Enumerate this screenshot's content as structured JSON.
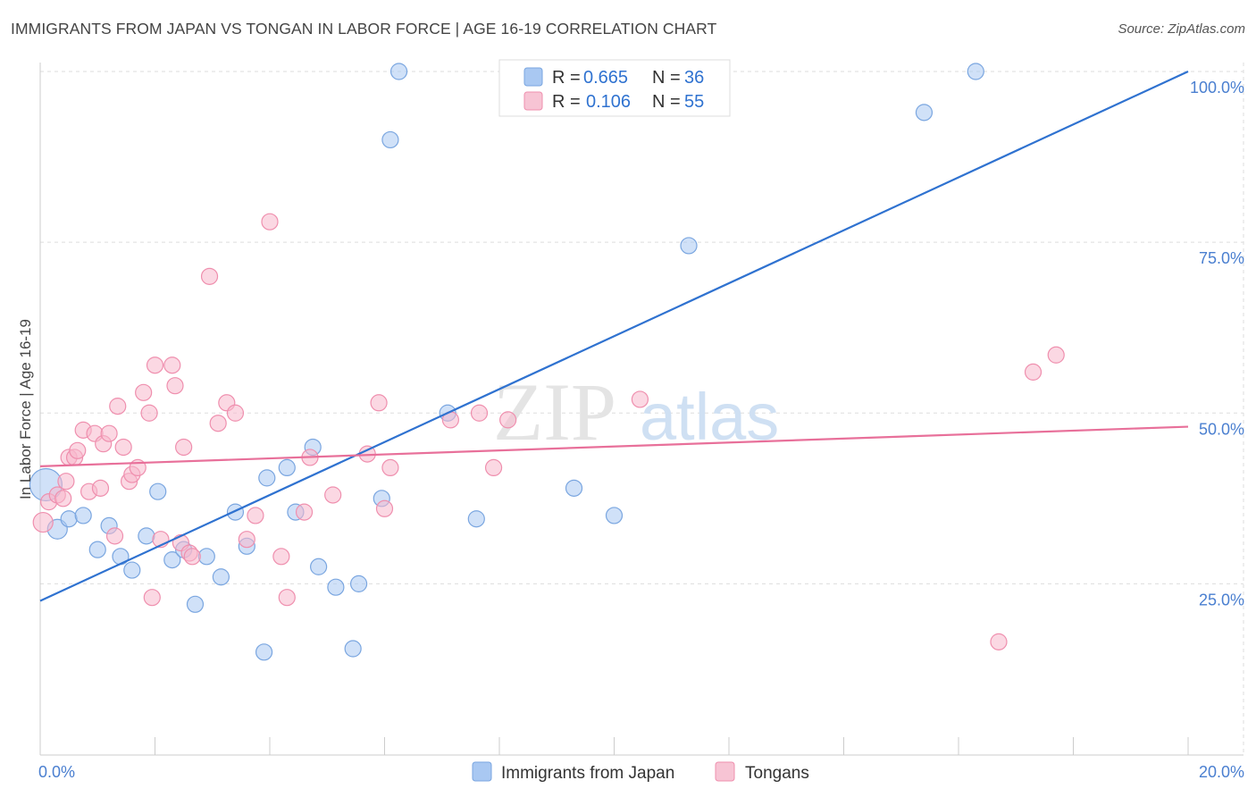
{
  "title": "IMMIGRANTS FROM JAPAN VS TONGAN IN LABOR FORCE | AGE 16-19 CORRELATION CHART",
  "source": "Source: ZipAtlas.com",
  "watermark": {
    "zip": "ZIP",
    "atlas": "atlas"
  },
  "colors": {
    "japan_fill": "#a9c8f2",
    "japan_stroke": "#7aa6e0",
    "japan_line": "#2f72d0",
    "tongan_fill": "#f7b8cc",
    "tongan_stroke": "#ef8fae",
    "tongan_line": "#e8709a",
    "grid": "#dddddd",
    "axis_text": "#4a7fd0"
  },
  "chart_data": {
    "type": "scatter",
    "title": "IMMIGRANTS FROM JAPAN VS TONGAN IN LABOR FORCE | AGE 16-19 CORRELATION CHART",
    "xlabel": "",
    "ylabel": "In Labor Force | Age 16-19",
    "xlim": [
      0,
      20
    ],
    "ylim": [
      0,
      105
    ],
    "x_tick_labels": [
      "0.0%",
      "20.0%"
    ],
    "y_ticks": [
      25,
      50,
      75,
      100
    ],
    "y_tick_labels": [
      "25.0%",
      "50.0%",
      "75.0%",
      "100.0%"
    ],
    "legend": {
      "rows": [
        {
          "r_label": "R =",
          "r_value": "0.665",
          "n_label": "N =",
          "n_value": "36"
        },
        {
          "r_label": "R =",
          "r_value": "0.106",
          "n_label": "N =",
          "n_value": "55"
        }
      ]
    },
    "series": [
      {
        "name": "Immigrants from Japan",
        "trend": {
          "x0": 0,
          "y0": 22.5,
          "x1": 20,
          "y1": 100
        },
        "points": [
          [
            0.1,
            39.5,
            18
          ],
          [
            0.3,
            33,
            11
          ],
          [
            0.5,
            34.5,
            9
          ],
          [
            0.75,
            35,
            9
          ],
          [
            1,
            30,
            9
          ],
          [
            1.2,
            33.5,
            9
          ],
          [
            1.4,
            29,
            9
          ],
          [
            1.6,
            27,
            9
          ],
          [
            1.85,
            32,
            9
          ],
          [
            2.05,
            38.5,
            9
          ],
          [
            2.3,
            28.5,
            9
          ],
          [
            2.5,
            30,
            9
          ],
          [
            2.7,
            22,
            9
          ],
          [
            2.9,
            29,
            9
          ],
          [
            3.15,
            26,
            9
          ],
          [
            3.4,
            35.5,
            9
          ],
          [
            3.6,
            30.5,
            9
          ],
          [
            3.9,
            15,
            9
          ],
          [
            3.95,
            40.5,
            9
          ],
          [
            4.3,
            42,
            9
          ],
          [
            4.45,
            35.5,
            9
          ],
          [
            4.75,
            45,
            9
          ],
          [
            4.85,
            27.5,
            9
          ],
          [
            5.15,
            24.5,
            9
          ],
          [
            5.55,
            25,
            9
          ],
          [
            5.45,
            15.5,
            9
          ],
          [
            5.95,
            37.5,
            9
          ],
          [
            6.1,
            90,
            9
          ],
          [
            6.25,
            100,
            9
          ],
          [
            7.1,
            50,
            9
          ],
          [
            7.6,
            34.5,
            9
          ],
          [
            9.3,
            39,
            9
          ],
          [
            10,
            35,
            9
          ],
          [
            11.3,
            74.5,
            9
          ],
          [
            15.4,
            94,
            9
          ],
          [
            16.3,
            100,
            9
          ]
        ]
      },
      {
        "name": "Tongans",
        "trend": {
          "x0": 0,
          "y0": 42.2,
          "x1": 20,
          "y1": 48.0
        },
        "points": [
          [
            0.05,
            34,
            11
          ],
          [
            0.15,
            37,
            9
          ],
          [
            0.3,
            38,
            9
          ],
          [
            0.4,
            37.5,
            9
          ],
          [
            0.45,
            40,
            9
          ],
          [
            0.5,
            43.5,
            9
          ],
          [
            0.6,
            43.5,
            9
          ],
          [
            0.65,
            44.5,
            9
          ],
          [
            0.75,
            47.5,
            9
          ],
          [
            0.85,
            38.5,
            9
          ],
          [
            0.95,
            47,
            9
          ],
          [
            1.05,
            39,
            9
          ],
          [
            1.1,
            45.5,
            9
          ],
          [
            1.2,
            47,
            9
          ],
          [
            1.3,
            32,
            9
          ],
          [
            1.35,
            51,
            9
          ],
          [
            1.45,
            45,
            9
          ],
          [
            1.55,
            40,
            9
          ],
          [
            1.6,
            41,
            9
          ],
          [
            1.7,
            42,
            9
          ],
          [
            1.8,
            53,
            9
          ],
          [
            1.9,
            50,
            9
          ],
          [
            1.95,
            23,
            9
          ],
          [
            2.0,
            57,
            9
          ],
          [
            2.1,
            31.5,
            9
          ],
          [
            2.3,
            57,
            9
          ],
          [
            2.35,
            54,
            9
          ],
          [
            2.45,
            31,
            9
          ],
          [
            2.5,
            45,
            9
          ],
          [
            2.6,
            29.5,
            9
          ],
          [
            2.65,
            29,
            9
          ],
          [
            2.95,
            70,
            9
          ],
          [
            3.1,
            48.5,
            9
          ],
          [
            3.25,
            51.5,
            9
          ],
          [
            3.4,
            50,
            9
          ],
          [
            3.6,
            31.5,
            9
          ],
          [
            3.75,
            35,
            9
          ],
          [
            4.0,
            78,
            9
          ],
          [
            4.2,
            29,
            9
          ],
          [
            4.3,
            23,
            9
          ],
          [
            4.6,
            35.5,
            9
          ],
          [
            4.7,
            43.5,
            9
          ],
          [
            5.1,
            38,
            9
          ],
          [
            5.7,
            44,
            9
          ],
          [
            5.9,
            51.5,
            9
          ],
          [
            6.0,
            36,
            9
          ],
          [
            6.1,
            42,
            9
          ],
          [
            7.15,
            49,
            9
          ],
          [
            7.65,
            50,
            9
          ],
          [
            7.9,
            42,
            9
          ],
          [
            8.15,
            49,
            9
          ],
          [
            10.45,
            52,
            9
          ],
          [
            16.7,
            16.5,
            9
          ],
          [
            17.3,
            56,
            9
          ],
          [
            17.7,
            58.5,
            9
          ]
        ]
      }
    ],
    "x_axis_legend": [
      "Immigrants from Japan",
      "Tongans"
    ]
  }
}
